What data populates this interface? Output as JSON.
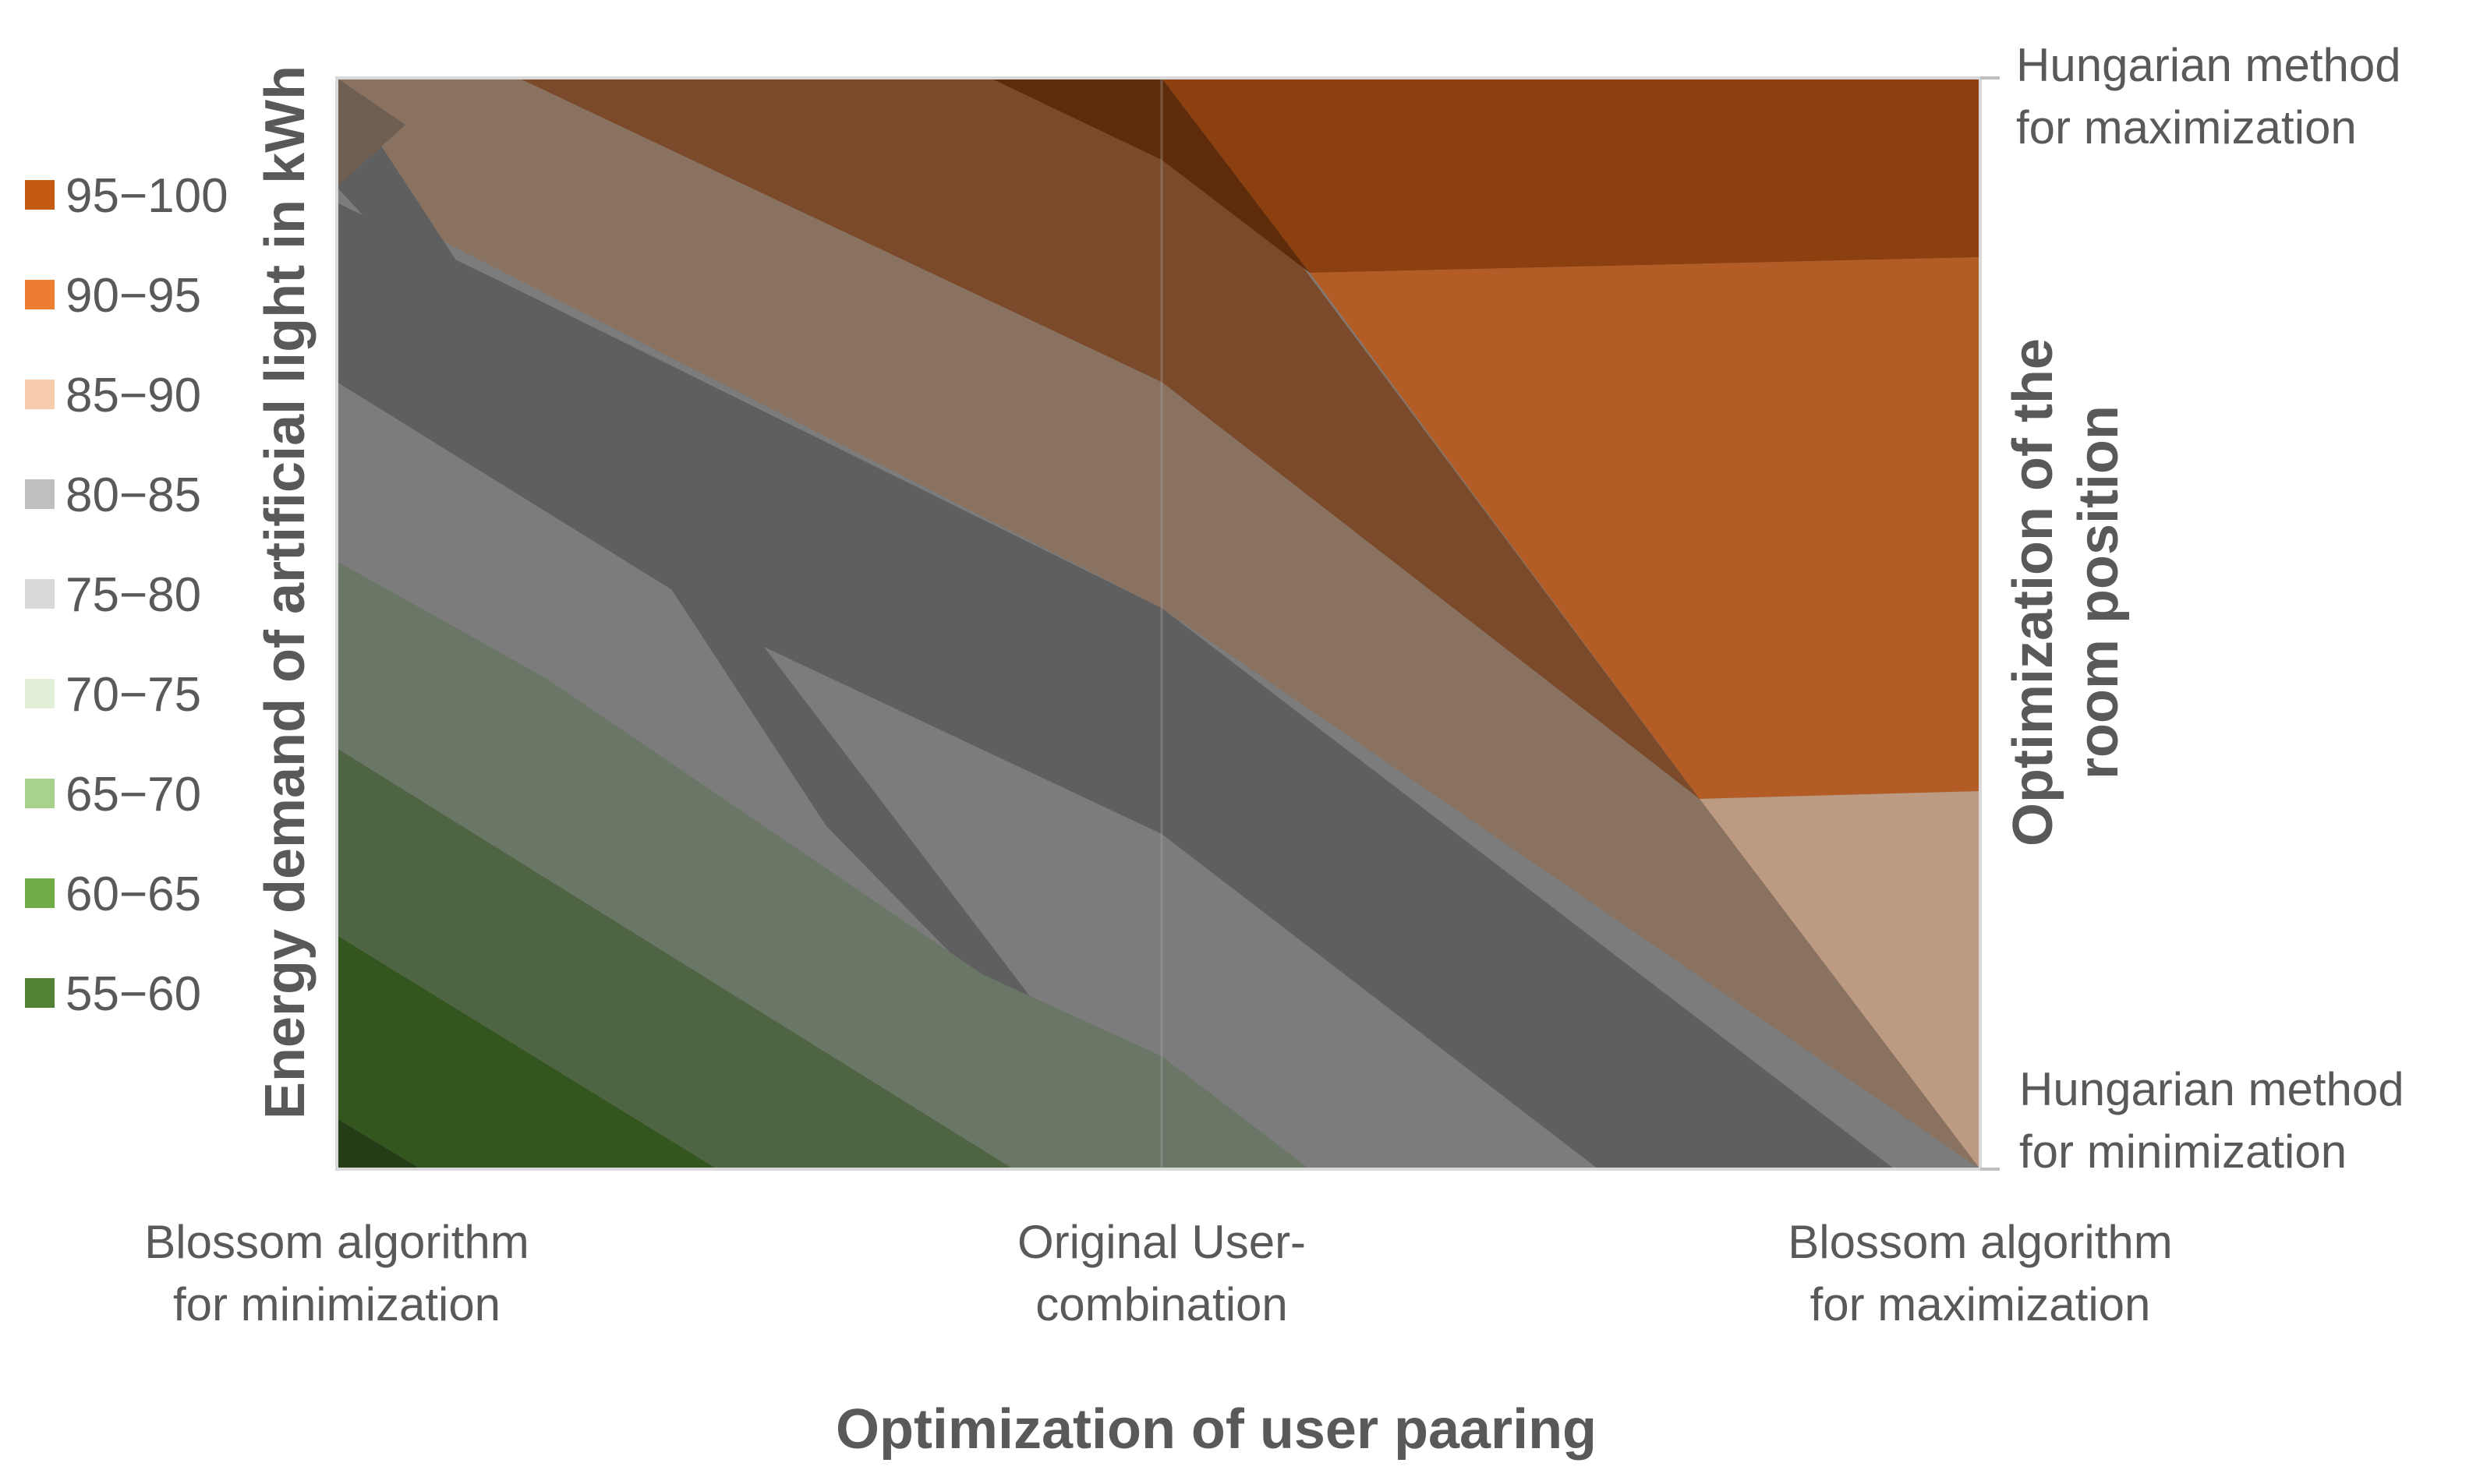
{
  "chart_data": {
    "type": "area",
    "subtype": "3d-surface-contour",
    "title": "",
    "xlabel": "Optimization of user paaring",
    "ylabel": "Energy demand of artificial light in kWh",
    "depth_label": "Optimization of the room position",
    "x_categories": [
      [
        "Blossom algorithm",
        "for minimization"
      ],
      [
        "Original User-",
        "combination"
      ],
      [
        "Blossom algorithm",
        "for maximization"
      ]
    ],
    "depth_categories": [
      [
        "Hungarian method",
        "for minimization"
      ],
      [
        "Hungarian method",
        "for maximization"
      ]
    ],
    "legend": {
      "position": "left",
      "items": [
        {
          "label": "95−100",
          "color": "#C55A11"
        },
        {
          "label": "90−95",
          "color": "#ED7D31"
        },
        {
          "label": "85−90",
          "color": "#F8CBAD"
        },
        {
          "label": "80−85",
          "color": "#BFBFBF"
        },
        {
          "label": "75−80",
          "color": "#D9D9D9"
        },
        {
          "label": "70−75",
          "color": "#E2F0D9"
        },
        {
          "label": "65−70",
          "color": "#A9D18E"
        },
        {
          "label": "60−65",
          "color": "#70AD47"
        },
        {
          "label": "55−60",
          "color": "#548235"
        }
      ]
    },
    "band_colors": {
      "55-60": "#375623",
      "60-65": "#33561f",
      "65-70": "#4f6443",
      "70-75": "#6a7766",
      "75-80": "#5f5f5f",
      "80-85": "#7c7c7c",
      "85-90": "#8a7261",
      "90-95": "#7a4a2a",
      "95-100": "#8c3f0f",
      "front-orange": "#b35c26",
      "front-light": "#bd9a82",
      "dark-edge": "#5e2c0b"
    }
  }
}
